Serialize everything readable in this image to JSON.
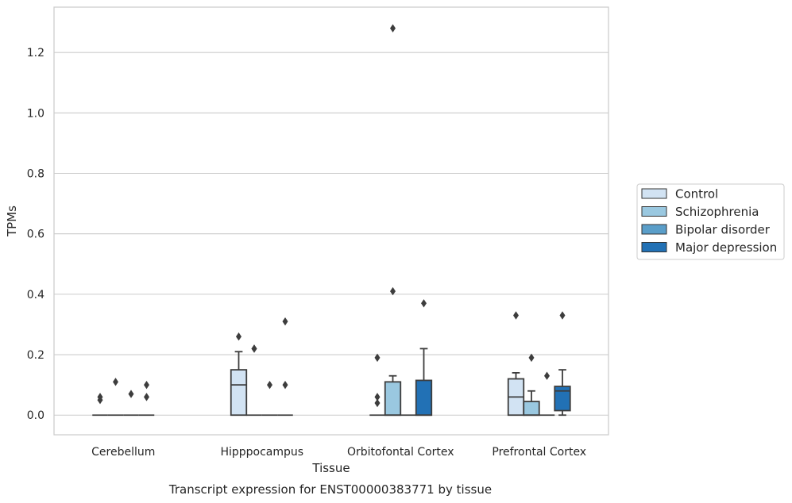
{
  "chart_data": {
    "type": "box",
    "xlabel": "Tissue",
    "ylabel": "TPMs",
    "caption": "Transcript expression for ENST00000383771 by tissue",
    "categories": [
      "Cerebellum",
      "Hipppocampus",
      "Orbitofontal Cortex",
      "Prefrontal Cortex"
    ],
    "ylim": [
      -0.065,
      1.35
    ],
    "yticks": [
      0.0,
      0.2,
      0.4,
      0.6,
      0.8,
      1.0,
      1.2
    ],
    "ytick_labels": [
      "0.0",
      "0.2",
      "0.4",
      "0.6",
      "0.8",
      "1.0",
      "1.2"
    ],
    "grid": true,
    "legend_position": "right",
    "series": [
      {
        "name": "Control",
        "color": "#d2e3f3",
        "boxes": [
          {
            "q1": 0,
            "median": 0,
            "q3": 0,
            "whisker_low": 0,
            "whisker_high": 0,
            "outliers": [
              0.05,
              0.06
            ]
          },
          {
            "q1": 0,
            "median": 0.1,
            "q3": 0.15,
            "whisker_low": 0,
            "whisker_high": 0.21,
            "outliers": [
              0.26
            ]
          },
          {
            "q1": 0,
            "median": 0,
            "q3": 0,
            "whisker_low": 0,
            "whisker_high": 0,
            "outliers": [
              0.04,
              0.06,
              0.19
            ]
          },
          {
            "q1": 0,
            "median": 0.06,
            "q3": 0.12,
            "whisker_low": 0,
            "whisker_high": 0.14,
            "outliers": [
              0.33
            ]
          }
        ]
      },
      {
        "name": "Schizophrenia",
        "color": "#9ac8e0",
        "boxes": [
          {
            "q1": 0,
            "median": 0,
            "q3": 0,
            "whisker_low": 0,
            "whisker_high": 0,
            "outliers": [
              0.11
            ]
          },
          {
            "q1": 0,
            "median": 0,
            "q3": 0,
            "whisker_low": 0,
            "whisker_high": 0,
            "outliers": [
              0.22,
              0.22
            ]
          },
          {
            "q1": 0,
            "median": 0,
            "q3": 0.11,
            "whisker_low": 0,
            "whisker_high": 0.13,
            "outliers": [
              0.41,
              1.28
            ]
          },
          {
            "q1": 0,
            "median": 0,
            "q3": 0.045,
            "whisker_low": 0,
            "whisker_high": 0.08,
            "outliers": [
              0.19
            ]
          }
        ]
      },
      {
        "name": "Bipolar disorder",
        "color": "#5a9ec9",
        "boxes": [
          {
            "q1": 0,
            "median": 0,
            "q3": 0,
            "whisker_low": 0,
            "whisker_high": 0,
            "outliers": [
              0.07
            ]
          },
          {
            "q1": 0,
            "median": 0,
            "q3": 0,
            "whisker_low": 0,
            "whisker_high": 0,
            "outliers": [
              0.1
            ]
          },
          {
            "q1": 0,
            "median": 0,
            "q3": 0,
            "whisker_low": 0,
            "whisker_high": 0,
            "outliers": []
          },
          {
            "q1": 0,
            "median": 0,
            "q3": 0,
            "whisker_low": 0,
            "whisker_high": 0,
            "outliers": [
              0.13
            ]
          }
        ]
      },
      {
        "name": "Major depression",
        "color": "#2271b5",
        "boxes": [
          {
            "q1": 0,
            "median": 0,
            "q3": 0,
            "whisker_low": 0,
            "whisker_high": 0,
            "outliers": [
              0.06,
              0.1
            ]
          },
          {
            "q1": 0,
            "median": 0,
            "q3": 0,
            "whisker_low": 0,
            "whisker_high": 0,
            "outliers": [
              0.1,
              0.31
            ]
          },
          {
            "q1": 0,
            "median": 0,
            "q3": 0.115,
            "whisker_low": 0,
            "whisker_high": 0.22,
            "outliers": [
              0.37
            ]
          },
          {
            "q1": 0.015,
            "median": 0.08,
            "q3": 0.095,
            "whisker_low": 0,
            "whisker_high": 0.15,
            "outliers": [
              0.33
            ]
          }
        ]
      }
    ]
  }
}
